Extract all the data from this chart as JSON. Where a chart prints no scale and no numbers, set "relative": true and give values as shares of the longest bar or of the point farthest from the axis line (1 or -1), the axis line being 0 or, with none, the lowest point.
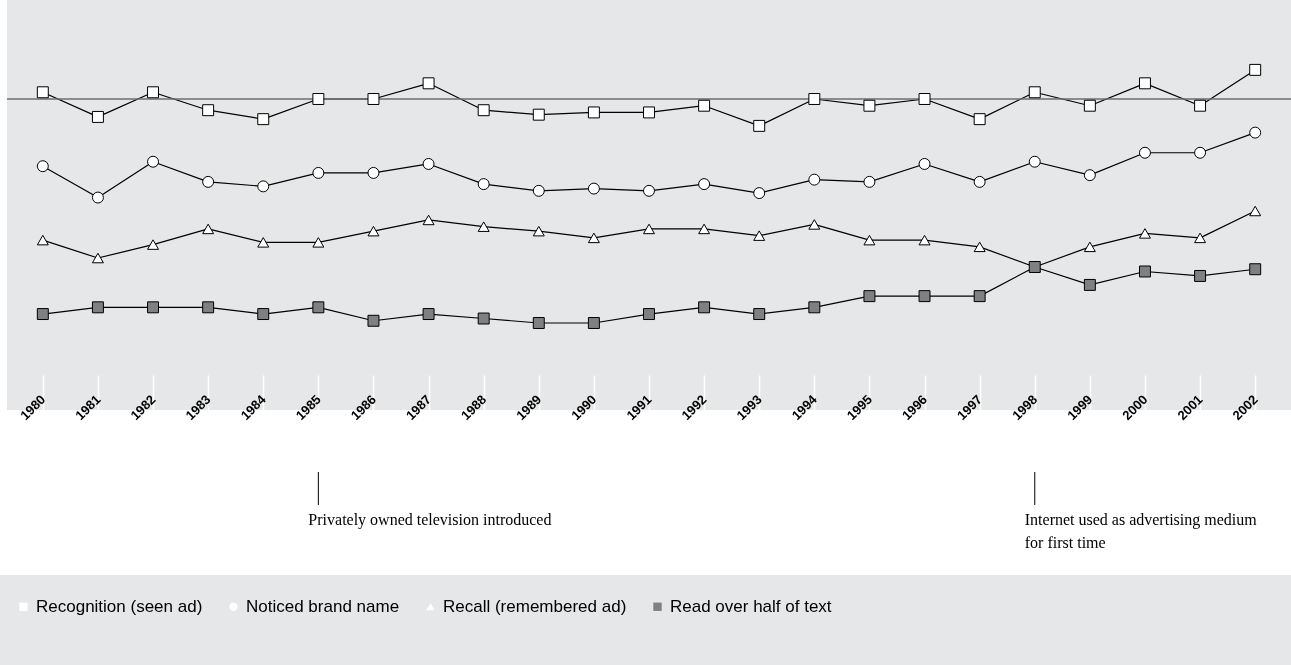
{
  "chart_data": {
    "type": "line",
    "relative": true,
    "categories": [
      "1980",
      "1981",
      "1982",
      "1983",
      "1984",
      "1985",
      "1986",
      "1987",
      "1988",
      "1989",
      "1990",
      "1991",
      "1992",
      "1993",
      "1994",
      "1995",
      "1996",
      "1997",
      "1998",
      "1999",
      "2000",
      "2001",
      "2002"
    ],
    "series": [
      {
        "name": "Recognition (seen ad)",
        "color": "#ffffff",
        "marker": "square",
        "values": [
          0.03,
          -0.08,
          0.03,
          -0.05,
          -0.09,
          0,
          0,
          0.07,
          -0.05,
          -0.07,
          -0.06,
          -0.06,
          -0.03,
          -0.12,
          0,
          -0.03,
          0,
          -0.09,
          0.03,
          -0.03,
          0.07,
          -0.03,
          0.13
        ]
      },
      {
        "name": "Noticed brand name",
        "color": "#ffffff",
        "marker": "circle",
        "values": [
          -0.3,
          -0.44,
          -0.28,
          -0.37,
          -0.39,
          -0.33,
          -0.33,
          -0.29,
          -0.38,
          -0.41,
          -0.4,
          -0.41,
          -0.38,
          -0.42,
          -0.36,
          -0.37,
          -0.29,
          -0.37,
          -0.28,
          -0.34,
          -0.24,
          -0.24,
          -0.15
        ]
      },
      {
        "name": "Recall (remembered ad)",
        "color": "#ffffff",
        "marker": "triangle",
        "values": [
          -0.63,
          -0.71,
          -0.65,
          -0.58,
          -0.64,
          -0.64,
          -0.59,
          -0.54,
          -0.57,
          -0.59,
          -0.62,
          -0.58,
          -0.58,
          -0.61,
          -0.56,
          -0.63,
          -0.63,
          -0.66,
          -0.75,
          -0.66,
          -0.6,
          -0.62,
          -0.5
        ]
      },
      {
        "name": "Read over half of text",
        "color": "#808080",
        "marker": "square",
        "values": [
          -0.96,
          -0.93,
          -0.93,
          -0.93,
          -0.96,
          -0.93,
          -0.99,
          -0.96,
          -0.98,
          -1,
          -1,
          -0.96,
          -0.93,
          -0.96,
          -0.93,
          -0.88,
          -0.88,
          -0.88,
          -0.75,
          -0.83,
          -0.77,
          -0.79,
          -0.76
        ]
      }
    ],
    "ref_lines": [
      {
        "axis": "x",
        "value": "1985",
        "label": "Privately owned television introduced",
        "color": "#000000"
      },
      {
        "axis": "x",
        "value": "1998",
        "label": "Internet used as advertising medium for first time",
        "color": "#000000"
      }
    ],
    "legend": "bottom",
    "grid": false
  }
}
